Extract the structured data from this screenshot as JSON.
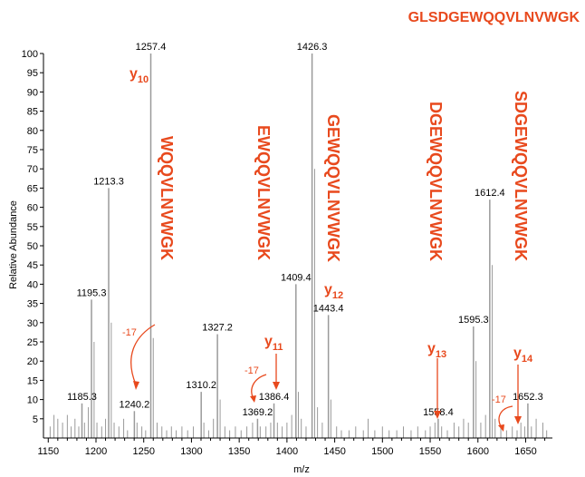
{
  "chart_data": {
    "type": "bar",
    "title": "GLSDGEWQQVLNVWGK",
    "xlabel": "m/z",
    "ylabel": "Relative Abundance",
    "xlim": [
      1145,
      1678
    ],
    "ylim": [
      0,
      100
    ],
    "xticks": [
      1150,
      1200,
      1250,
      1300,
      1350,
      1400,
      1450,
      1500,
      1550,
      1600,
      1650
    ],
    "yticks": [
      5,
      10,
      15,
      20,
      25,
      30,
      35,
      40,
      45,
      50,
      55,
      60,
      65,
      70,
      75,
      80,
      85,
      90,
      95,
      100
    ],
    "colors": {
      "annotation": "#e8491d",
      "peak": "#9a9a9a",
      "axis": "#000000"
    },
    "labeled_peaks": [
      {
        "mz": 1185.3,
        "intensity": 9,
        "label": "1185.3"
      },
      {
        "mz": 1195.3,
        "intensity": 36,
        "label": "1195.3"
      },
      {
        "mz": 1213.3,
        "intensity": 65,
        "label": "1213.3"
      },
      {
        "mz": 1240.2,
        "intensity": 7,
        "label": "1240.2"
      },
      {
        "mz": 1257.4,
        "intensity": 100,
        "label": "1257.4"
      },
      {
        "mz": 1310.2,
        "intensity": 12,
        "label": "1310.2"
      },
      {
        "mz": 1327.2,
        "intensity": 27,
        "label": "1327.2"
      },
      {
        "mz": 1369.2,
        "intensity": 5,
        "label": "1369.2"
      },
      {
        "mz": 1386.4,
        "intensity": 9,
        "label": "1386.4"
      },
      {
        "mz": 1409.4,
        "intensity": 40,
        "label": "1409.4"
      },
      {
        "mz": 1426.3,
        "intensity": 100,
        "label": "1426.3"
      },
      {
        "mz": 1443.4,
        "intensity": 32,
        "label": "1443.4"
      },
      {
        "mz": 1558.4,
        "intensity": 5,
        "label": "1558.4"
      },
      {
        "mz": 1595.3,
        "intensity": 29,
        "label": "1595.3"
      },
      {
        "mz": 1612.4,
        "intensity": 62,
        "label": "1612.4"
      },
      {
        "mz": 1652.3,
        "intensity": 9,
        "label": "1652.3"
      }
    ],
    "minor_peaks": [
      [
        1152,
        3
      ],
      [
        1156,
        6
      ],
      [
        1160,
        5
      ],
      [
        1165,
        4
      ],
      [
        1170,
        6
      ],
      [
        1174,
        3
      ],
      [
        1178,
        5
      ],
      [
        1182,
        3
      ],
      [
        1188,
        4
      ],
      [
        1192,
        8
      ],
      [
        1198,
        25
      ],
      [
        1201,
        4
      ],
      [
        1206,
        3
      ],
      [
        1210,
        5
      ],
      [
        1216,
        30
      ],
      [
        1219,
        4
      ],
      [
        1224,
        3
      ],
      [
        1229,
        5
      ],
      [
        1233,
        2
      ],
      [
        1243,
        4
      ],
      [
        1248,
        3
      ],
      [
        1252,
        2
      ],
      [
        1260,
        26
      ],
      [
        1264,
        4
      ],
      [
        1269,
        3
      ],
      [
        1274,
        2
      ],
      [
        1279,
        3
      ],
      [
        1284,
        2
      ],
      [
        1290,
        3
      ],
      [
        1296,
        2
      ],
      [
        1302,
        3
      ],
      [
        1313,
        4
      ],
      [
        1318,
        2
      ],
      [
        1323,
        5
      ],
      [
        1330,
        10
      ],
      [
        1335,
        3
      ],
      [
        1340,
        2
      ],
      [
        1346,
        3
      ],
      [
        1352,
        2
      ],
      [
        1358,
        3
      ],
      [
        1364,
        4
      ],
      [
        1372,
        3
      ],
      [
        1378,
        3
      ],
      [
        1383,
        4
      ],
      [
        1390,
        4
      ],
      [
        1395,
        3
      ],
      [
        1400,
        4
      ],
      [
        1405,
        6
      ],
      [
        1412,
        12
      ],
      [
        1415,
        5
      ],
      [
        1420,
        3
      ],
      [
        1429,
        70
      ],
      [
        1432,
        8
      ],
      [
        1437,
        4
      ],
      [
        1446,
        10
      ],
      [
        1452,
        3
      ],
      [
        1457,
        2
      ],
      [
        1465,
        2
      ],
      [
        1472,
        3
      ],
      [
        1480,
        2
      ],
      [
        1485,
        5
      ],
      [
        1492,
        2
      ],
      [
        1500,
        3
      ],
      [
        1507,
        2
      ],
      [
        1515,
        2
      ],
      [
        1522,
        3
      ],
      [
        1530,
        2
      ],
      [
        1537,
        3
      ],
      [
        1545,
        2
      ],
      [
        1550,
        3
      ],
      [
        1555,
        4
      ],
      [
        1562,
        3
      ],
      [
        1568,
        2
      ],
      [
        1575,
        4
      ],
      [
        1580,
        3
      ],
      [
        1585,
        5
      ],
      [
        1590,
        4
      ],
      [
        1598,
        20
      ],
      [
        1603,
        4
      ],
      [
        1608,
        6
      ],
      [
        1615,
        45
      ],
      [
        1618,
        5
      ],
      [
        1624,
        3
      ],
      [
        1630,
        2
      ],
      [
        1636,
        3
      ],
      [
        1641,
        2
      ],
      [
        1645,
        4
      ],
      [
        1649,
        3
      ],
      [
        1656,
        3
      ],
      [
        1661,
        5
      ],
      [
        1668,
        4
      ],
      [
        1672,
        2
      ]
    ],
    "ion_labels": [
      {
        "base": "y",
        "sub": "10"
      },
      {
        "base": "y",
        "sub": "11"
      },
      {
        "base": "y",
        "sub": "12"
      },
      {
        "base": "y",
        "sub": "13"
      },
      {
        "base": "y",
        "sub": "14"
      }
    ],
    "sequences": [
      "WQQVLNVWGK",
      "EWQQVLNVWGK",
      "GEWQQVLNVWGK",
      "DGEWQQVLNVWGK",
      "SDGEWQQVLNVWGK"
    ],
    "loss_labels": [
      "-17",
      "-17",
      "-17"
    ]
  }
}
